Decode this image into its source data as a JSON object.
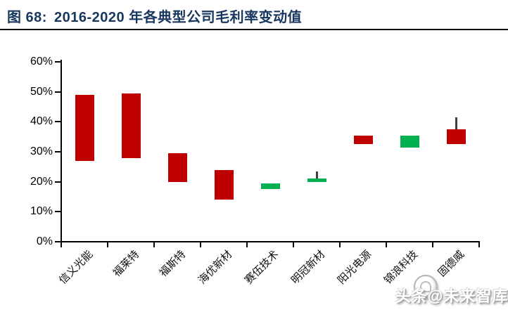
{
  "header": {
    "figure_label": "图 68:",
    "title": "2016-2020 年各典型公司毛利率变动值"
  },
  "watermark": {
    "text": "头条@未来智库",
    "logo": "toutiao-logo"
  },
  "chart_data": {
    "type": "candlestick",
    "title": "2016-2020 年各典型公司毛利率变动值",
    "xlabel": "",
    "ylabel": "",
    "unit": "%",
    "ylim": [
      0,
      60
    ],
    "ytick_step": 10,
    "ytick_labels": [
      "0%",
      "10%",
      "20%",
      "30%",
      "40%",
      "50%",
      "60%"
    ],
    "grid": false,
    "legend_position": "none",
    "colors": {
      "decrease": "#c00000",
      "increase": "#00b050",
      "whisker": "#404040",
      "axis": "#000000",
      "title": "#17375e"
    },
    "categories": [
      "信义光能",
      "福莱特",
      "福斯特",
      "海优新材",
      "赛伍技术",
      "明冠新材",
      "阳光电源",
      "锦浪科技",
      "固德威"
    ],
    "series": [
      {
        "name": "信义光能",
        "low": 27,
        "high": 49,
        "whisker_high": null,
        "change": "decrease"
      },
      {
        "name": "福莱特",
        "low": 28,
        "high": 49.5,
        "whisker_high": null,
        "change": "decrease"
      },
      {
        "name": "福斯特",
        "low": 20,
        "high": 29.5,
        "whisker_high": null,
        "change": "decrease"
      },
      {
        "name": "海优新材",
        "low": 14,
        "high": 24,
        "whisker_high": null,
        "change": "decrease"
      },
      {
        "name": "赛伍技术",
        "low": 17.5,
        "high": 19.5,
        "whisker_high": null,
        "change": "increase"
      },
      {
        "name": "明冠新材",
        "low": 20,
        "high": 21,
        "whisker_high": 23.5,
        "change": "increase"
      },
      {
        "name": "阳光电源",
        "low": 32.5,
        "high": 35.5,
        "whisker_high": null,
        "change": "decrease"
      },
      {
        "name": "锦浪科技",
        "low": 31.5,
        "high": 35.5,
        "whisker_high": null,
        "change": "increase"
      },
      {
        "name": "固德威",
        "low": 32.5,
        "high": 37.5,
        "whisker_high": 41.5,
        "change": "decrease"
      }
    ]
  }
}
